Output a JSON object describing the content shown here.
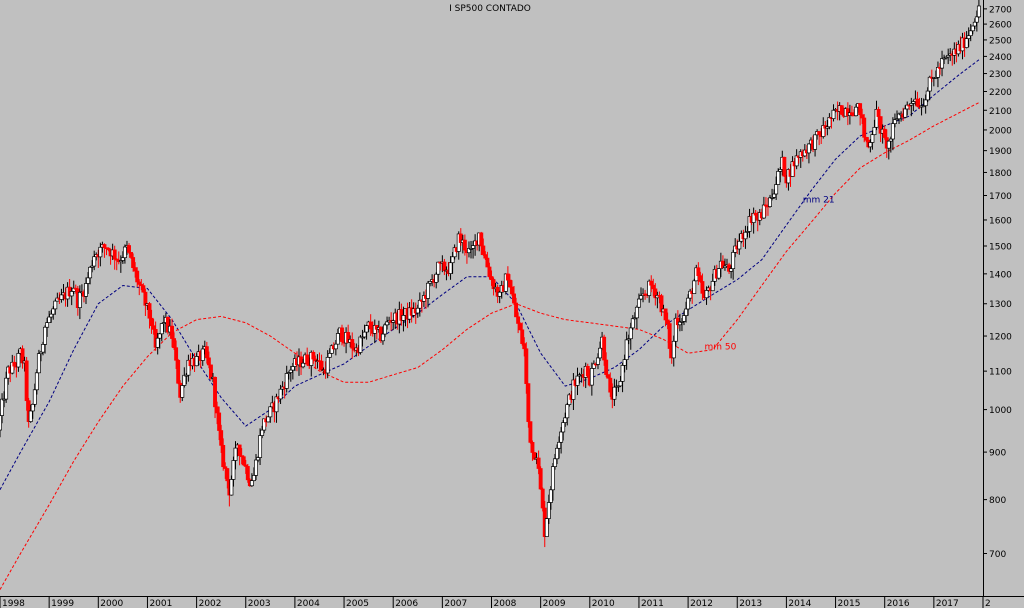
{
  "chart_data": {
    "type": "candlestick",
    "title": "I SP500 CONTADO",
    "scale": "log",
    "ylim": [
      630,
      2760
    ],
    "y_ticks": [
      700,
      800,
      900,
      1000,
      1100,
      1200,
      1300,
      1400,
      1500,
      1600,
      1700,
      1800,
      1900,
      2000,
      2100,
      2200,
      2300,
      2400,
      2500,
      2600,
      2700
    ],
    "x_ticks": [
      "1998",
      "1999",
      "2000",
      "2001",
      "2002",
      "2003",
      "2004",
      "2005",
      "2006",
      "2007",
      "2008",
      "2009",
      "2010",
      "2011",
      "2012",
      "2013",
      "2014",
      "2015",
      "2016",
      "2017",
      "2"
    ],
    "x_range": [
      "1998-01",
      "2018-01"
    ],
    "grid": false,
    "up_color": "#ffffff",
    "down_color": "#ff0000",
    "close_series": {
      "name": "",
      "points": [
        [
          "1998-01",
          980
        ],
        [
          "1998-03",
          1100
        ],
        [
          "1998-05",
          1120
        ],
        [
          "1998-06",
          1150
        ],
        [
          "1998-07",
          1110
        ],
        [
          "1998-08",
          960
        ],
        [
          "1998-09",
          1010
        ],
        [
          "1998-10",
          1100
        ],
        [
          "1998-12",
          1230
        ],
        [
          "1999-03",
          1300
        ],
        [
          "1999-05",
          1330
        ],
        [
          "1999-07",
          1360
        ],
        [
          "1999-08",
          1310
        ],
        [
          "1999-10",
          1360
        ],
        [
          "1999-12",
          1470
        ],
        [
          "2000-03",
          1500
        ],
        [
          "2000-06",
          1450
        ],
        [
          "2000-08",
          1490
        ],
        [
          "2000-10",
          1400
        ],
        [
          "2000-12",
          1320
        ],
        [
          "2001-02",
          1240
        ],
        [
          "2001-03",
          1160
        ],
        [
          "2001-05",
          1250
        ],
        [
          "2001-07",
          1200
        ],
        [
          "2001-09",
          1040
        ],
        [
          "2001-11",
          1130
        ],
        [
          "2002-01",
          1130
        ],
        [
          "2002-03",
          1150
        ],
        [
          "2002-05",
          1070
        ],
        [
          "2002-07",
          900
        ],
        [
          "2002-09",
          820
        ],
        [
          "2002-11",
          920
        ],
        [
          "2003-02",
          840
        ],
        [
          "2003-03",
          850
        ],
        [
          "2003-05",
          960
        ],
        [
          "2003-08",
          1010
        ],
        [
          "2003-12",
          1110
        ],
        [
          "2004-03",
          1130
        ],
        [
          "2004-06",
          1140
        ],
        [
          "2004-08",
          1100
        ],
        [
          "2004-12",
          1210
        ],
        [
          "2005-04",
          1160
        ],
        [
          "2005-07",
          1230
        ],
        [
          "2005-10",
          1200
        ],
        [
          "2005-12",
          1250
        ],
        [
          "2006-05",
          1270
        ],
        [
          "2006-07",
          1280
        ],
        [
          "2006-12",
          1420
        ],
        [
          "2007-03",
          1420
        ],
        [
          "2007-05",
          1530
        ],
        [
          "2007-08",
          1470
        ],
        [
          "2007-10",
          1550
        ],
        [
          "2007-11",
          1480
        ],
        [
          "2008-01",
          1380
        ],
        [
          "2008-03",
          1320
        ],
        [
          "2008-05",
          1400
        ],
        [
          "2008-07",
          1260
        ],
        [
          "2008-09",
          1160
        ],
        [
          "2008-10",
          970
        ],
        [
          "2008-11",
          900
        ],
        [
          "2008-12",
          900
        ],
        [
          "2009-02",
          740
        ],
        [
          "2009-03",
          800
        ],
        [
          "2009-05",
          920
        ],
        [
          "2009-07",
          990
        ],
        [
          "2009-09",
          1060
        ],
        [
          "2009-12",
          1110
        ],
        [
          "2010-01",
          1080
        ],
        [
          "2010-04",
          1190
        ],
        [
          "2010-06",
          1030
        ],
        [
          "2010-08",
          1050
        ],
        [
          "2010-10",
          1180
        ],
        [
          "2010-12",
          1260
        ],
        [
          "2011-02",
          1330
        ],
        [
          "2011-04",
          1360
        ],
        [
          "2011-06",
          1320
        ],
        [
          "2011-08",
          1220
        ],
        [
          "2011-09",
          1130
        ],
        [
          "2011-10",
          1250
        ],
        [
          "2011-12",
          1260
        ],
        [
          "2012-03",
          1400
        ],
        [
          "2012-05",
          1310
        ],
        [
          "2012-07",
          1380
        ],
        [
          "2012-09",
          1440
        ],
        [
          "2012-11",
          1410
        ],
        [
          "2013-01",
          1500
        ],
        [
          "2013-05",
          1630
        ],
        [
          "2013-06",
          1600
        ],
        [
          "2013-09",
          1680
        ],
        [
          "2013-12",
          1840
        ],
        [
          "2014-01",
          1780
        ],
        [
          "2014-04",
          1880
        ],
        [
          "2014-07",
          1930
        ],
        [
          "2014-09",
          1970
        ],
        [
          "2014-12",
          2060
        ],
        [
          "2015-02",
          2100
        ],
        [
          "2015-05",
          2110
        ],
        [
          "2015-07",
          2100
        ],
        [
          "2015-08",
          1970
        ],
        [
          "2015-09",
          1920
        ],
        [
          "2015-11",
          2080
        ],
        [
          "2016-01",
          1940
        ],
        [
          "2016-02",
          1930
        ],
        [
          "2016-04",
          2070
        ],
        [
          "2016-06",
          2100
        ],
        [
          "2016-08",
          2170
        ],
        [
          "2016-10",
          2130
        ],
        [
          "2016-12",
          2240
        ],
        [
          "2017-03",
          2360
        ],
        [
          "2017-06",
          2420
        ],
        [
          "2017-08",
          2470
        ],
        [
          "2017-10",
          2570
        ],
        [
          "2017-11",
          2650
        ],
        [
          "2017-12",
          2690
        ]
      ]
    },
    "moving_averages": [
      {
        "name": "mm 21",
        "color": "#000080",
        "style": "dashed",
        "points": [
          [
            "1998-01",
            820
          ],
          [
            "1998-06",
            900
          ],
          [
            "1999-01",
            1020
          ],
          [
            "1999-07",
            1160
          ],
          [
            "2000-01",
            1300
          ],
          [
            "2000-07",
            1360
          ],
          [
            "2001-01",
            1350
          ],
          [
            "2001-07",
            1250
          ],
          [
            "2002-01",
            1130
          ],
          [
            "2002-07",
            1030
          ],
          [
            "2003-01",
            960
          ],
          [
            "2003-07",
            1000
          ],
          [
            "2004-01",
            1060
          ],
          [
            "2004-07",
            1090
          ],
          [
            "2005-01",
            1120
          ],
          [
            "2005-07",
            1170
          ],
          [
            "2006-01",
            1220
          ],
          [
            "2006-07",
            1270
          ],
          [
            "2007-01",
            1330
          ],
          [
            "2007-07",
            1390
          ],
          [
            "2008-01",
            1390
          ],
          [
            "2008-07",
            1300
          ],
          [
            "2009-01",
            1150
          ],
          [
            "2009-07",
            1060
          ],
          [
            "2010-01",
            1080
          ],
          [
            "2010-07",
            1110
          ],
          [
            "2011-01",
            1160
          ],
          [
            "2011-07",
            1230
          ],
          [
            "2012-01",
            1280
          ],
          [
            "2012-07",
            1330
          ],
          [
            "2013-01",
            1380
          ],
          [
            "2013-07",
            1450
          ],
          [
            "2014-01",
            1580
          ],
          [
            "2014-07",
            1720
          ],
          [
            "2015-01",
            1860
          ],
          [
            "2015-07",
            1970
          ],
          [
            "2016-01",
            2020
          ],
          [
            "2016-07",
            2070
          ],
          [
            "2017-01",
            2180
          ],
          [
            "2017-07",
            2290
          ],
          [
            "2017-12",
            2380
          ]
        ]
      },
      {
        "name": "mm 50",
        "color": "#ff0000",
        "style": "dashed",
        "points": [
          [
            "1998-01",
            640
          ],
          [
            "1998-06",
            700
          ],
          [
            "1999-01",
            790
          ],
          [
            "1999-07",
            880
          ],
          [
            "2000-01",
            970
          ],
          [
            "2000-07",
            1060
          ],
          [
            "2001-01",
            1140
          ],
          [
            "2001-07",
            1210
          ],
          [
            "2002-01",
            1250
          ],
          [
            "2002-07",
            1260
          ],
          [
            "2003-01",
            1240
          ],
          [
            "2003-07",
            1200
          ],
          [
            "2004-01",
            1150
          ],
          [
            "2004-07",
            1100
          ],
          [
            "2005-01",
            1070
          ],
          [
            "2005-07",
            1070
          ],
          [
            "2006-01",
            1090
          ],
          [
            "2006-07",
            1110
          ],
          [
            "2007-01",
            1160
          ],
          [
            "2007-07",
            1220
          ],
          [
            "2008-01",
            1270
          ],
          [
            "2008-07",
            1300
          ],
          [
            "2009-01",
            1270
          ],
          [
            "2009-07",
            1250
          ],
          [
            "2010-01",
            1240
          ],
          [
            "2010-07",
            1230
          ],
          [
            "2011-01",
            1220
          ],
          [
            "2011-07",
            1190
          ],
          [
            "2012-01",
            1150
          ],
          [
            "2012-07",
            1160
          ],
          [
            "2013-01",
            1250
          ],
          [
            "2013-07",
            1360
          ],
          [
            "2014-01",
            1480
          ],
          [
            "2014-07",
            1590
          ],
          [
            "2015-01",
            1710
          ],
          [
            "2015-07",
            1820
          ],
          [
            "2016-01",
            1890
          ],
          [
            "2016-07",
            1950
          ],
          [
            "2017-01",
            2020
          ],
          [
            "2017-12",
            2140
          ]
        ]
      }
    ],
    "annotations": [
      {
        "text": "mm 21",
        "x": "2014-05",
        "y": 1670,
        "color": "#000080"
      },
      {
        "text": "mm 50",
        "x": "2012-05",
        "y": 1160,
        "color": "#ff0000"
      }
    ]
  }
}
